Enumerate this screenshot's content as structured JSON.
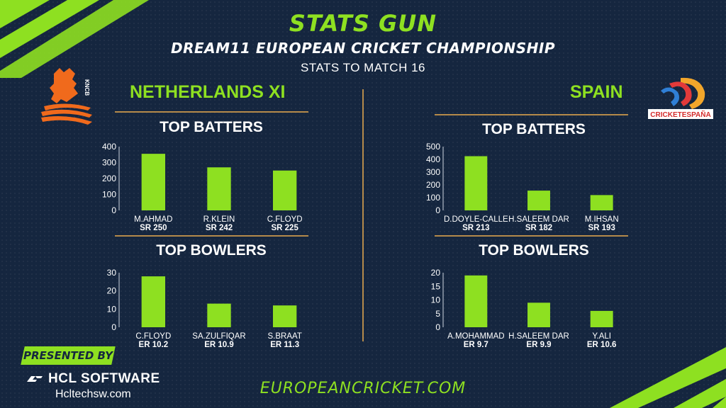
{
  "header": {
    "title": "STATS GUN",
    "subtitle": "DREAM11 EUROPEAN CRICKET CHAMPIONSHIP",
    "stats_note": "STATS TO MATCH 16"
  },
  "teams": {
    "left": "NETHERLANDS XI",
    "right": "SPAIN",
    "left_logo_text": "KNCB",
    "right_logo_text": "CRICKETESPAÑA"
  },
  "colors": {
    "accent": "#8ee021",
    "background": "#15263f",
    "divider": "#b58a4a"
  },
  "chart_data": [
    {
      "type": "bar",
      "team": "NETHERLANDS XI",
      "title": "TOP BATTERS",
      "categories": [
        "M.AHMAD",
        "R.KLEIN",
        "C.FLOYD"
      ],
      "sublabels": [
        "SR 250",
        "SR 242",
        "SR 225"
      ],
      "values": [
        355,
        270,
        250
      ],
      "ylim": [
        0,
        400
      ],
      "yticks": [
        0,
        100,
        200,
        300,
        400
      ]
    },
    {
      "type": "bar",
      "team": "SPAIN",
      "title": "TOP BATTERS",
      "categories": [
        "D.DOYLE-CALLE",
        "H.SALEEM DAR",
        "M.IHSAN"
      ],
      "sublabels": [
        "SR 213",
        "SR 182",
        "SR 193"
      ],
      "values": [
        425,
        155,
        120
      ],
      "ylim": [
        0,
        500
      ],
      "yticks": [
        0,
        100,
        200,
        300,
        400,
        500
      ]
    },
    {
      "type": "bar",
      "team": "NETHERLANDS XI",
      "title": "TOP BOWLERS",
      "categories": [
        "C.FLOYD",
        "SA.ZULFIQAR",
        "S.BRAAT"
      ],
      "sublabels": [
        "ER 10.2",
        "ER 10.9",
        "ER 11.3"
      ],
      "values": [
        28,
        13,
        12
      ],
      "ylim": [
        0,
        30
      ],
      "yticks": [
        0,
        10,
        20,
        30
      ]
    },
    {
      "type": "bar",
      "team": "SPAIN",
      "title": "TOP BOWLERS",
      "categories": [
        "A.MOHAMMAD",
        "H.SALEEM DAR",
        "Y.ALI"
      ],
      "sublabels": [
        "ER 9.7",
        "ER 9.9",
        "ER 10.6"
      ],
      "values": [
        19,
        9,
        6
      ],
      "ylim": [
        0,
        20
      ],
      "yticks": [
        0,
        5,
        10,
        15,
        20
      ]
    }
  ],
  "footer": {
    "presented_by": "PRESENTED BY",
    "sponsor": "HCL SOFTWARE",
    "sponsor_url": "Hcltechsw.com",
    "website": "EUROPEANCRICKET.COM"
  }
}
